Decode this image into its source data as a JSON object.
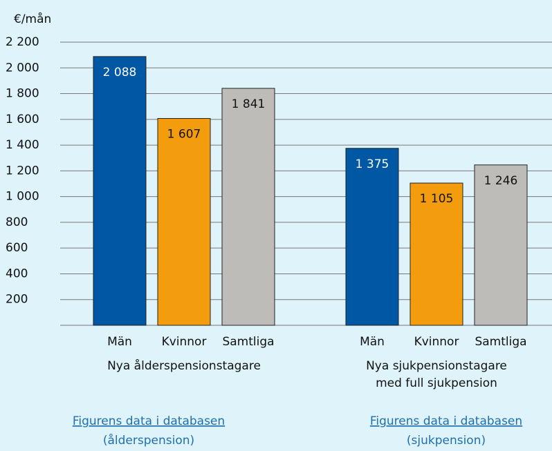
{
  "chart_data": {
    "type": "grouped-bar",
    "ylabel": "€/mån",
    "ylim": [
      0,
      2200
    ],
    "yticks": [
      200,
      400,
      600,
      800,
      {
        "value": 1000,
        "label": "1 000"
      },
      {
        "value": 1200,
        "label": "1 200"
      },
      {
        "value": 1400,
        "label": "1 400"
      },
      {
        "value": 1600,
        "label": "1 600"
      },
      {
        "value": 1800,
        "label": "1 800"
      },
      {
        "value": 2000,
        "label": "2 000"
      },
      {
        "value": 2200,
        "label": "2 200"
      }
    ],
    "grid": true,
    "colors": [
      "#0057a4",
      "#f39c0d",
      "#bdbcb9"
    ],
    "groups": [
      {
        "name": [
          "Nya ålderspensionstagare"
        ],
        "categories": [
          "Män",
          "Kvinnor",
          "Samtliga"
        ],
        "values": [
          2088,
          1607,
          1841
        ],
        "value_labels": [
          "2 088",
          "1 607",
          "1 841"
        ]
      },
      {
        "name": [
          "Nya sjukpensionstagare",
          "med full sjukpension"
        ],
        "categories": [
          "Män",
          "Kvinnor",
          "Samtliga"
        ],
        "values": [
          1375,
          1105,
          1246
        ],
        "value_labels": [
          "1 375",
          "1 105",
          "1 246"
        ]
      }
    ]
  },
  "links": [
    {
      "text": "Figurens data i databasen",
      "subtext": "(ålderspension)"
    },
    {
      "text": "Figurens data i databasen",
      "subtext": "(sjukpension)"
    }
  ]
}
